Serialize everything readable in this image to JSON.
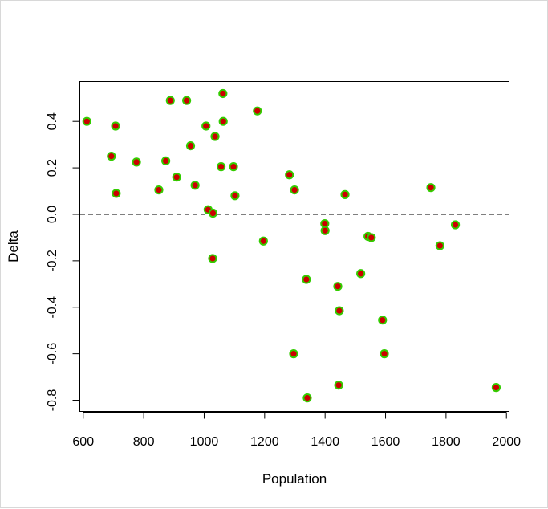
{
  "chart_data": {
    "type": "scatter",
    "title": "",
    "xlabel": "Population",
    "ylabel": "Delta",
    "xlim": [
      590,
      2010
    ],
    "ylim": [
      -0.85,
      0.57
    ],
    "x_ticks": [
      600,
      800,
      1000,
      1200,
      1400,
      1600,
      1800,
      2000
    ],
    "y_ticks": [
      -0.8,
      -0.6,
      -0.4,
      -0.2,
      0.0,
      0.2,
      0.4
    ],
    "x_tick_labels": [
      "600",
      "800",
      "1000",
      "1200",
      "1400",
      "1600",
      "1800",
      "2000"
    ],
    "y_tick_labels": [
      "-0.8",
      "-0.6",
      "-0.4",
      "-0.2",
      "0.0",
      "0.2",
      "0.4"
    ],
    "grid": false,
    "reference_line": {
      "y": 0.0,
      "style": "dashed",
      "color": "#555555"
    },
    "marker": {
      "fill": "#cc0000",
      "stroke": "#33cc00"
    },
    "points": [
      {
        "x": 612,
        "y": 0.4
      },
      {
        "x": 693,
        "y": 0.25
      },
      {
        "x": 707,
        "y": 0.38
      },
      {
        "x": 709,
        "y": 0.09
      },
      {
        "x": 776,
        "y": 0.225
      },
      {
        "x": 850,
        "y": 0.105
      },
      {
        "x": 873,
        "y": 0.23
      },
      {
        "x": 888,
        "y": 0.49
      },
      {
        "x": 909,
        "y": 0.16
      },
      {
        "x": 942,
        "y": 0.49
      },
      {
        "x": 955,
        "y": 0.295
      },
      {
        "x": 970,
        "y": 0.125
      },
      {
        "x": 1006,
        "y": 0.38
      },
      {
        "x": 1013,
        "y": 0.02
      },
      {
        "x": 1029,
        "y": 0.005
      },
      {
        "x": 1028,
        "y": -0.19
      },
      {
        "x": 1036,
        "y": 0.335
      },
      {
        "x": 1056,
        "y": 0.205
      },
      {
        "x": 1062,
        "y": 0.52
      },
      {
        "x": 1063,
        "y": 0.4
      },
      {
        "x": 1097,
        "y": 0.205
      },
      {
        "x": 1102,
        "y": 0.08
      },
      {
        "x": 1176,
        "y": 0.445
      },
      {
        "x": 1196,
        "y": -0.115
      },
      {
        "x": 1282,
        "y": 0.17
      },
      {
        "x": 1299,
        "y": 0.105
      },
      {
        "x": 1296,
        "y": -0.6
      },
      {
        "x": 1338,
        "y": -0.28
      },
      {
        "x": 1341,
        "y": -0.79
      },
      {
        "x": 1399,
        "y": -0.04
      },
      {
        "x": 1400,
        "y": -0.07
      },
      {
        "x": 1442,
        "y": -0.31
      },
      {
        "x": 1447,
        "y": -0.415
      },
      {
        "x": 1445,
        "y": -0.735
      },
      {
        "x": 1466,
        "y": 0.085
      },
      {
        "x": 1518,
        "y": -0.255
      },
      {
        "x": 1542,
        "y": -0.095
      },
      {
        "x": 1553,
        "y": -0.1
      },
      {
        "x": 1590,
        "y": -0.455
      },
      {
        "x": 1596,
        "y": -0.6
      },
      {
        "x": 1750,
        "y": 0.115
      },
      {
        "x": 1780,
        "y": -0.135
      },
      {
        "x": 1831,
        "y": -0.045
      },
      {
        "x": 1966,
        "y": -0.745
      }
    ]
  }
}
